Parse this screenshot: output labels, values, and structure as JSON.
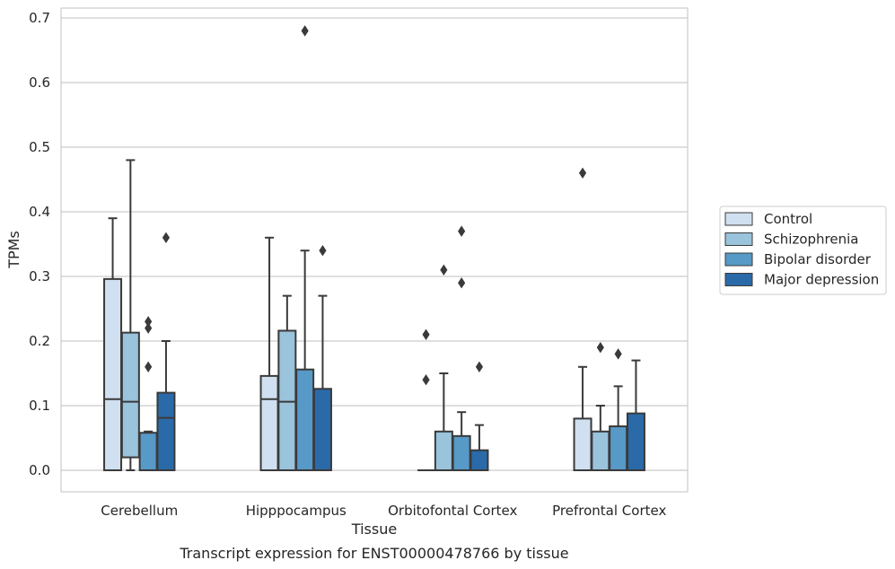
{
  "chart_data": {
    "type": "box",
    "title": "",
    "caption": "Transcript expression for ENST00000478766 by tissue",
    "xlabel": "Tissue",
    "ylabel": "TPMs",
    "ylim": [
      -0.033,
      0.715
    ],
    "yticks": [
      0.0,
      0.1,
      0.2,
      0.3,
      0.4,
      0.5,
      0.6,
      0.7
    ],
    "ytick_labels": [
      "0.0",
      "0.1",
      "0.2",
      "0.3",
      "0.4",
      "0.5",
      "0.6",
      "0.7"
    ],
    "grid": "horizontal",
    "legend_placement": "right",
    "categories": [
      "Cerebellum",
      "Hipppocampus",
      "Orbitofontal Cortex",
      "Prefrontal Cortex"
    ],
    "series": [
      {
        "name": "Control",
        "color": "#d0e0f0",
        "boxes": [
          {
            "q1": 0.0,
            "median": 0.11,
            "q3": 0.296,
            "whisker_low": 0.0,
            "whisker_high": 0.39,
            "outliers": []
          },
          {
            "q1": 0.0,
            "median": 0.11,
            "q3": 0.146,
            "whisker_low": 0.0,
            "whisker_high": 0.36,
            "outliers": []
          },
          {
            "q1": 0.0,
            "median": 0.0,
            "q3": 0.0,
            "whisker_low": 0.0,
            "whisker_high": 0.0,
            "outliers": [
              0.14,
              0.21
            ]
          },
          {
            "q1": 0.0,
            "median": 0.0,
            "q3": 0.08,
            "whisker_low": 0.0,
            "whisker_high": 0.16,
            "outliers": [
              0.46
            ]
          }
        ]
      },
      {
        "name": "Schizophrenia",
        "color": "#9ac3dc",
        "boxes": [
          {
            "q1": 0.02,
            "median": 0.106,
            "q3": 0.213,
            "whisker_low": 0.0,
            "whisker_high": 0.48,
            "outliers": []
          },
          {
            "q1": 0.0,
            "median": 0.106,
            "q3": 0.216,
            "whisker_low": 0.0,
            "whisker_high": 0.27,
            "outliers": []
          },
          {
            "q1": 0.0,
            "median": 0.0,
            "q3": 0.06,
            "whisker_low": 0.0,
            "whisker_high": 0.15,
            "outliers": [
              0.31
            ]
          },
          {
            "q1": 0.0,
            "median": 0.0,
            "q3": 0.06,
            "whisker_low": 0.0,
            "whisker_high": 0.1,
            "outliers": [
              0.19
            ]
          }
        ]
      },
      {
        "name": "Bipolar disorder",
        "color": "#5799c7",
        "boxes": [
          {
            "q1": 0.0,
            "median": 0.0,
            "q3": 0.058,
            "whisker_low": 0.0,
            "whisker_high": 0.06,
            "outliers": [
              0.16,
              0.22,
              0.23
            ]
          },
          {
            "q1": 0.0,
            "median": 0.0,
            "q3": 0.156,
            "whisker_low": 0.0,
            "whisker_high": 0.34,
            "outliers": [
              0.68
            ]
          },
          {
            "q1": 0.0,
            "median": 0.0,
            "q3": 0.053,
            "whisker_low": 0.0,
            "whisker_high": 0.09,
            "outliers": [
              0.29,
              0.37
            ]
          },
          {
            "q1": 0.0,
            "median": 0.0,
            "q3": 0.068,
            "whisker_low": 0.0,
            "whisker_high": 0.13,
            "outliers": [
              0.18
            ]
          }
        ]
      },
      {
        "name": "Major depression",
        "color": "#2a6aa9",
        "boxes": [
          {
            "q1": 0.0,
            "median": 0.081,
            "q3": 0.12,
            "whisker_low": 0.0,
            "whisker_high": 0.2,
            "outliers": [
              0.36
            ]
          },
          {
            "q1": 0.0,
            "median": 0.0,
            "q3": 0.126,
            "whisker_low": 0.0,
            "whisker_high": 0.27,
            "outliers": [
              0.34
            ]
          },
          {
            "q1": 0.0,
            "median": 0.0,
            "q3": 0.031,
            "whisker_low": 0.0,
            "whisker_high": 0.07,
            "outliers": [
              0.16
            ]
          },
          {
            "q1": 0.0,
            "median": 0.0,
            "q3": 0.088,
            "whisker_low": 0.0,
            "whisker_high": 0.17,
            "outliers": []
          }
        ]
      }
    ]
  }
}
